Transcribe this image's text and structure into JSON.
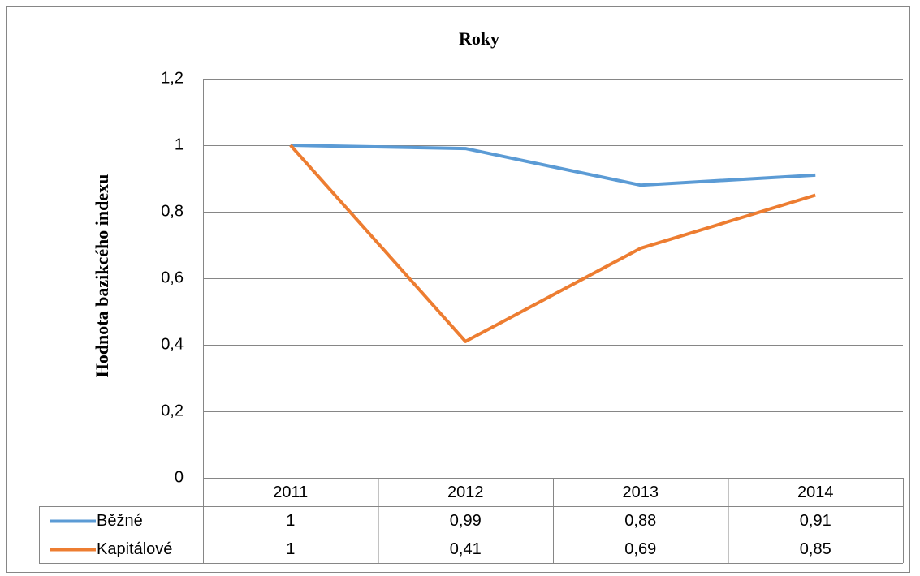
{
  "chart_data": {
    "type": "line",
    "title": "Roky",
    "y_label": "Hodnota bazikcého indexu",
    "categories": [
      "2011",
      "2012",
      "2013",
      "2014"
    ],
    "series": [
      {
        "name": "Běžné",
        "color": "#5b9bd5",
        "values": [
          1,
          0.99,
          0.88,
          0.91
        ],
        "value_labels": [
          "1",
          "0,99",
          "0,88",
          "0,91"
        ]
      },
      {
        "name": "Kapitálové",
        "color": "#ed7d31",
        "values": [
          1,
          0.41,
          0.69,
          0.85
        ],
        "value_labels": [
          "1",
          "0,41",
          "0,69",
          "0,85"
        ]
      }
    ],
    "ylim": [
      0,
      1.2
    ],
    "yticks": [
      0,
      {
        "value": 0.2,
        "label": "0,2"
      },
      {
        "value": 0.4,
        "label": "0,4"
      },
      {
        "value": 0.6,
        "label": "0,6"
      },
      {
        "value": 0.8,
        "label": "0,8"
      },
      1,
      {
        "value": 1.2,
        "label": "1,2"
      }
    ],
    "grid": true,
    "data_table": true
  }
}
